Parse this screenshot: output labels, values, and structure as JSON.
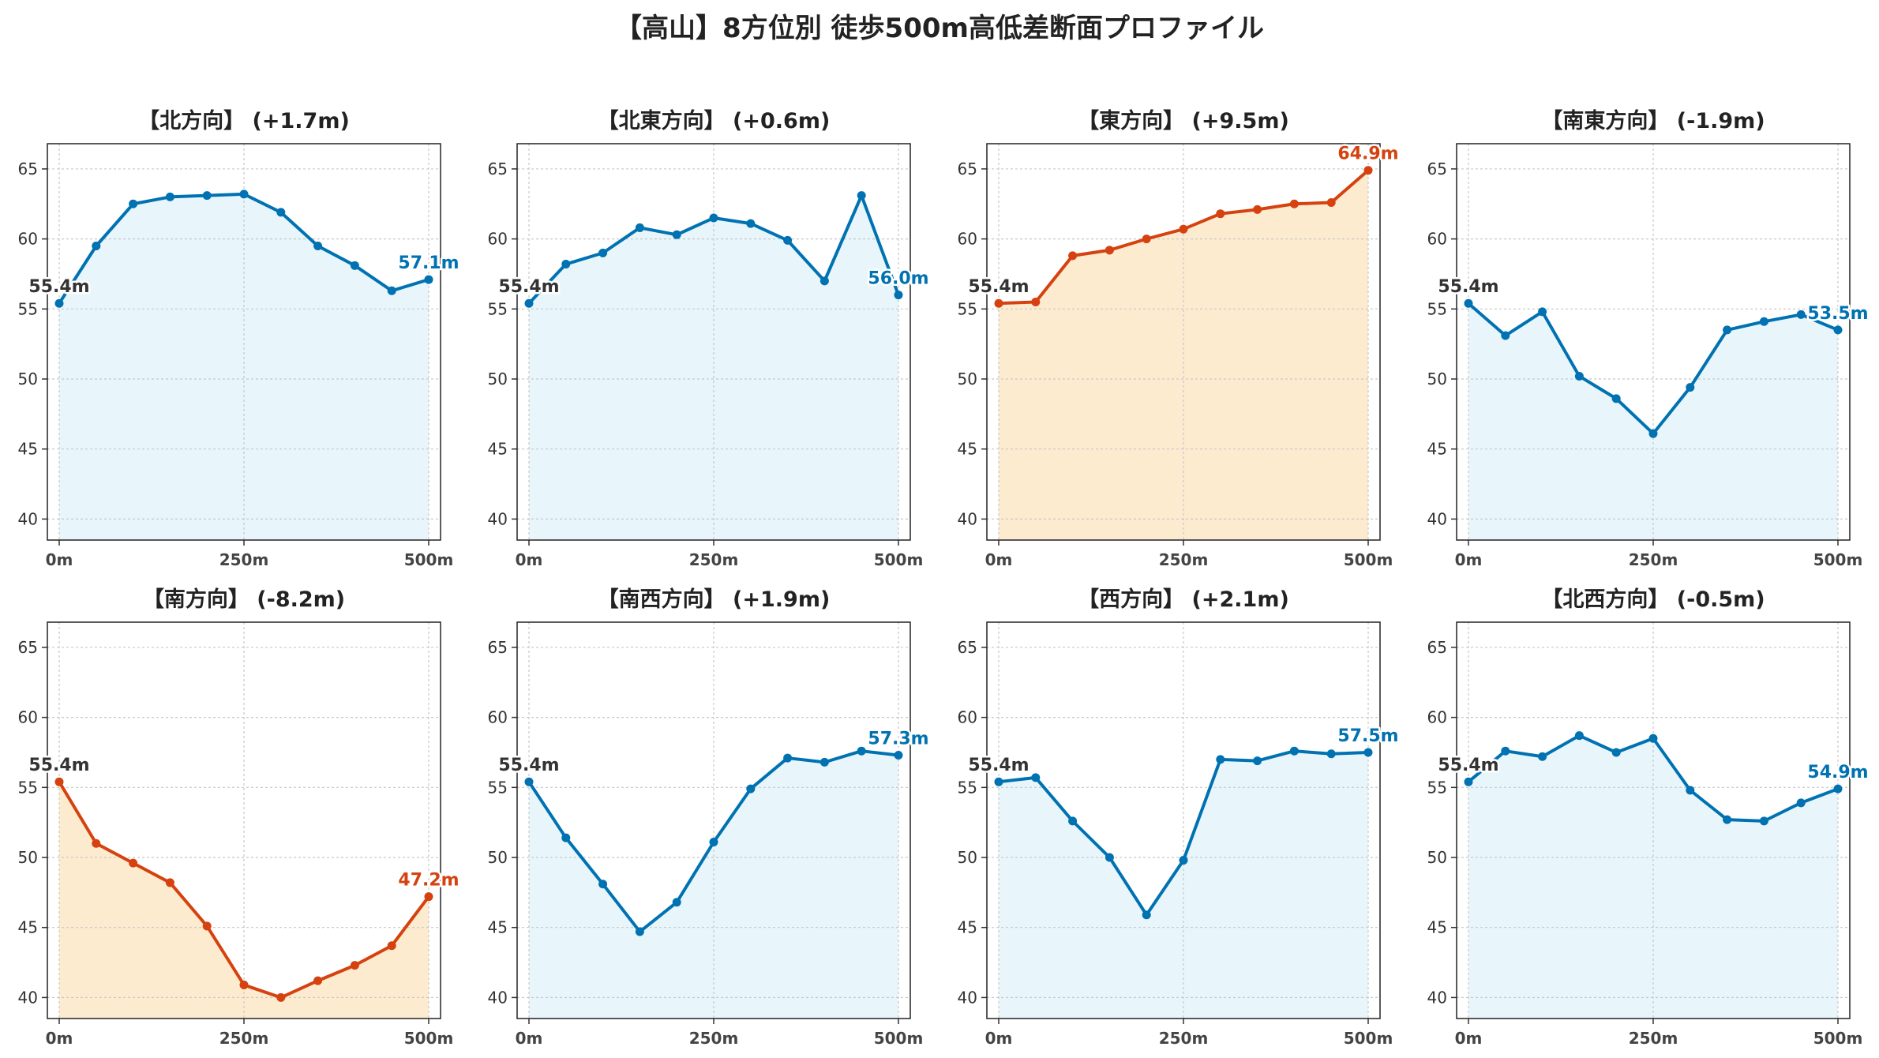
{
  "page": {
    "title": "【高山】8方位別 徒歩500m高低差断面プロファイル"
  },
  "colors": {
    "up_line": "#0072b2",
    "up_fill": "#e8f6fb",
    "down_line": "#d5420f",
    "down_fill": "#fdebd0",
    "start_label": "#333333",
    "grid": "#c8c8c8"
  },
  "chart_data": [
    {
      "type": "area",
      "title": "【北方向】 (+1.7m)",
      "highlight": false,
      "x": [
        0,
        50,
        100,
        150,
        200,
        250,
        300,
        350,
        400,
        450,
        500
      ],
      "y": [
        55.4,
        59.5,
        62.5,
        63.0,
        63.1,
        63.2,
        61.9,
        59.5,
        58.1,
        56.3,
        57.1
      ],
      "start_label": "55.4m",
      "end_label": "57.1m",
      "ylim": [
        38.5,
        66.8
      ],
      "yticks": [
        "40",
        "45",
        "50",
        "55",
        "60",
        "65"
      ],
      "xticks": [
        "0m",
        "250m",
        "500m"
      ],
      "grid": true
    },
    {
      "type": "area",
      "title": "【北東方向】 (+0.6m)",
      "highlight": false,
      "x": [
        0,
        50,
        100,
        150,
        200,
        250,
        300,
        350,
        400,
        450,
        500
      ],
      "y": [
        55.4,
        58.2,
        59.0,
        60.8,
        60.3,
        61.5,
        61.1,
        59.9,
        57.0,
        63.1,
        56.0
      ],
      "start_label": "55.4m",
      "end_label": "56.0m",
      "ylim": [
        38.5,
        66.8
      ],
      "yticks": [
        "40",
        "45",
        "50",
        "55",
        "60",
        "65"
      ],
      "xticks": [
        "0m",
        "250m",
        "500m"
      ],
      "grid": true
    },
    {
      "type": "area",
      "title": "【東方向】 (+9.5m)",
      "highlight": true,
      "x": [
        0,
        50,
        100,
        150,
        200,
        250,
        300,
        350,
        400,
        450,
        500
      ],
      "y": [
        55.4,
        55.5,
        58.8,
        59.2,
        60.0,
        60.7,
        61.8,
        62.1,
        62.5,
        62.6,
        64.9
      ],
      "start_label": "55.4m",
      "end_label": "64.9m",
      "ylim": [
        38.5,
        66.8
      ],
      "yticks": [
        "40",
        "45",
        "50",
        "55",
        "60",
        "65"
      ],
      "xticks": [
        "0m",
        "250m",
        "500m"
      ],
      "grid": true
    },
    {
      "type": "area",
      "title": "【南東方向】 (-1.9m)",
      "highlight": false,
      "x": [
        0,
        50,
        100,
        150,
        200,
        250,
        300,
        350,
        400,
        450,
        500
      ],
      "y": [
        55.4,
        53.1,
        54.8,
        50.2,
        48.6,
        46.1,
        49.4,
        53.5,
        54.1,
        54.6,
        53.5
      ],
      "start_label": "55.4m",
      "end_label": "53.5m",
      "ylim": [
        38.5,
        66.8
      ],
      "yticks": [
        "40",
        "45",
        "50",
        "55",
        "60",
        "65"
      ],
      "xticks": [
        "0m",
        "250m",
        "500m"
      ],
      "grid": true
    },
    {
      "type": "area",
      "title": "【南方向】 (-8.2m)",
      "highlight": true,
      "x": [
        0,
        50,
        100,
        150,
        200,
        250,
        300,
        350,
        400,
        450,
        500
      ],
      "y": [
        55.4,
        51.0,
        49.6,
        48.2,
        45.1,
        40.9,
        40.0,
        41.2,
        42.3,
        43.7,
        47.2
      ],
      "start_label": "55.4m",
      "end_label": "47.2m",
      "ylim": [
        38.5,
        66.8
      ],
      "yticks": [
        "40",
        "45",
        "50",
        "55",
        "60",
        "65"
      ],
      "xticks": [
        "0m",
        "250m",
        "500m"
      ],
      "grid": true
    },
    {
      "type": "area",
      "title": "【南西方向】 (+1.9m)",
      "highlight": false,
      "x": [
        0,
        50,
        100,
        150,
        200,
        250,
        300,
        350,
        400,
        450,
        500
      ],
      "y": [
        55.4,
        51.4,
        48.1,
        44.7,
        46.8,
        51.1,
        54.9,
        57.1,
        56.8,
        57.6,
        57.3
      ],
      "start_label": "55.4m",
      "end_label": "57.3m",
      "ylim": [
        38.5,
        66.8
      ],
      "yticks": [
        "40",
        "45",
        "50",
        "55",
        "60",
        "65"
      ],
      "xticks": [
        "0m",
        "250m",
        "500m"
      ],
      "grid": true
    },
    {
      "type": "area",
      "title": "【西方向】 (+2.1m)",
      "highlight": false,
      "x": [
        0,
        50,
        100,
        150,
        200,
        250,
        300,
        350,
        400,
        450,
        500
      ],
      "y": [
        55.4,
        55.7,
        52.6,
        50.0,
        45.9,
        49.8,
        57.0,
        56.9,
        57.6,
        57.4,
        57.5
      ],
      "start_label": "55.4m",
      "end_label": "57.5m",
      "ylim": [
        38.5,
        66.8
      ],
      "yticks": [
        "40",
        "45",
        "50",
        "55",
        "60",
        "65"
      ],
      "xticks": [
        "0m",
        "250m",
        "500m"
      ],
      "grid": true
    },
    {
      "type": "area",
      "title": "【北西方向】 (-0.5m)",
      "highlight": false,
      "x": [
        0,
        50,
        100,
        150,
        200,
        250,
        300,
        350,
        400,
        450,
        500
      ],
      "y": [
        55.4,
        57.6,
        57.2,
        58.7,
        57.5,
        58.5,
        54.8,
        52.7,
        52.6,
        53.9,
        54.9
      ],
      "start_label": "55.4m",
      "end_label": "54.9m",
      "ylim": [
        38.5,
        66.8
      ],
      "yticks": [
        "40",
        "45",
        "50",
        "55",
        "60",
        "65"
      ],
      "xticks": [
        "0m",
        "250m",
        "500m"
      ],
      "grid": true
    }
  ]
}
